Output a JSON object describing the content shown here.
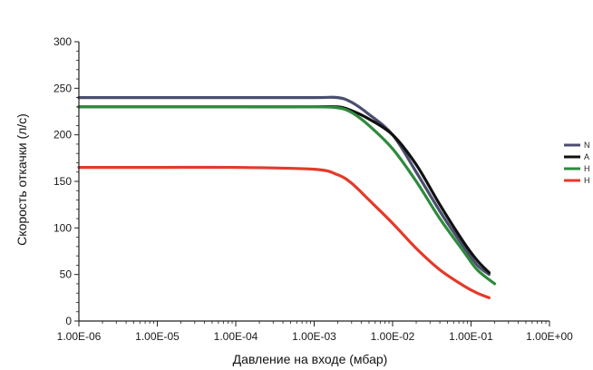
{
  "chart_data": {
    "type": "line",
    "xscale": "log",
    "xlim": [
      1e-06,
      1
    ],
    "ylim": [
      0,
      300
    ],
    "xlabel": "Давление на входе (мбар)",
    "ylabel": "Скорость откачки (л/с)",
    "x_ticks": [
      "1.00E-06",
      "1.00E-05",
      "1.00E-04",
      "1.00E-03",
      "1.00E-02",
      "1.00E-01",
      "1.00E+00"
    ],
    "y_ticks": [
      "0",
      "50",
      "100",
      "150",
      "200",
      "250",
      "300"
    ],
    "grid": false,
    "legend_position": "right",
    "series": [
      {
        "name": "N",
        "color": "#4a4e6e",
        "points": [
          [
            1e-06,
            240
          ],
          [
            1e-05,
            240
          ],
          [
            0.0001,
            240
          ],
          [
            0.001,
            240
          ],
          [
            0.002,
            240
          ],
          [
            0.003,
            235
          ],
          [
            0.005,
            222
          ],
          [
            0.01,
            200
          ],
          [
            0.02,
            160
          ],
          [
            0.04,
            118
          ],
          [
            0.08,
            80
          ],
          [
            0.12,
            60
          ],
          [
            0.17,
            50
          ]
        ]
      },
      {
        "name": "A",
        "color": "#111111",
        "points": [
          [
            1e-06,
            230
          ],
          [
            1e-05,
            230
          ],
          [
            0.0001,
            230
          ],
          [
            0.001,
            230
          ],
          [
            0.002,
            230
          ],
          [
            0.003,
            226
          ],
          [
            0.005,
            217
          ],
          [
            0.01,
            200
          ],
          [
            0.02,
            168
          ],
          [
            0.04,
            125
          ],
          [
            0.08,
            85
          ],
          [
            0.12,
            65
          ],
          [
            0.17,
            52
          ]
        ]
      },
      {
        "name": "H",
        "color": "#2e8b3c",
        "points": [
          [
            1e-06,
            230
          ],
          [
            1e-05,
            230
          ],
          [
            0.0001,
            230
          ],
          [
            0.001,
            230
          ],
          [
            0.002,
            229
          ],
          [
            0.003,
            224
          ],
          [
            0.005,
            210
          ],
          [
            0.01,
            185
          ],
          [
            0.02,
            150
          ],
          [
            0.04,
            110
          ],
          [
            0.08,
            75
          ],
          [
            0.12,
            55
          ],
          [
            0.2,
            40
          ]
        ]
      },
      {
        "name": "H",
        "color": "#e43a2a",
        "points": [
          [
            1e-06,
            165
          ],
          [
            1e-05,
            165
          ],
          [
            0.0001,
            165
          ],
          [
            0.001,
            163
          ],
          [
            0.002,
            157
          ],
          [
            0.003,
            148
          ],
          [
            0.005,
            130
          ],
          [
            0.01,
            105
          ],
          [
            0.02,
            78
          ],
          [
            0.04,
            55
          ],
          [
            0.08,
            38
          ],
          [
            0.12,
            30
          ],
          [
            0.17,
            25
          ]
        ]
      }
    ]
  }
}
